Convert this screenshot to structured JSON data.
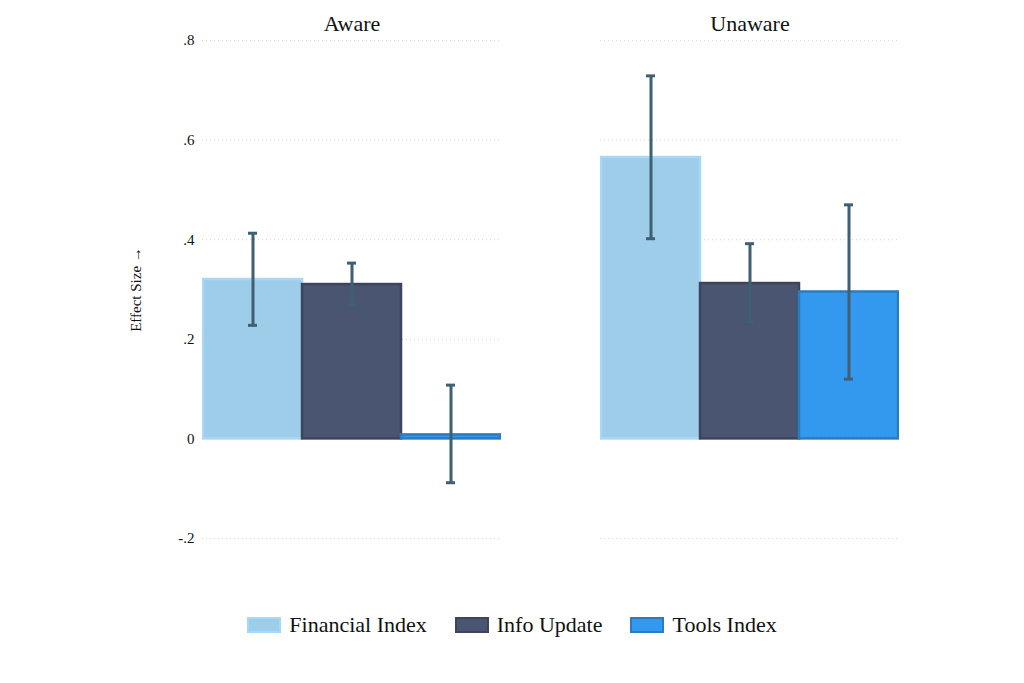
{
  "chart_data": {
    "type": "bar",
    "categories": [
      "Aware",
      "Unaware"
    ],
    "series": [
      {
        "name": "Financial Index",
        "color": "#9ecdea",
        "values": [
          0.32,
          0.565
        ],
        "ci_low": [
          0.228,
          0.402
        ],
        "ci_high": [
          0.413,
          0.729
        ]
      },
      {
        "name": "Info Update",
        "color": "#4a5572",
        "values": [
          0.31,
          0.312
        ],
        "ci_low": [
          0.27,
          0.235
        ],
        "ci_high": [
          0.353,
          0.392
        ]
      },
      {
        "name": "Tools Index",
        "color": "#3399ee",
        "values": [
          0.008,
          0.295
        ],
        "ci_low": [
          -0.088,
          0.12
        ],
        "ci_high": [
          0.108,
          0.47
        ]
      }
    ],
    "y_label": "Effect Size",
    "ylim": [
      -0.2,
      0.8
    ],
    "yticks": [
      {
        "value": -0.2,
        "label": "-.2"
      },
      {
        "value": 0,
        "label": "0"
      },
      {
        "value": 0.2,
        "label": ".2"
      },
      {
        "value": 0.4,
        "label": ".4"
      },
      {
        "value": 0.6,
        "label": ".6"
      },
      {
        "value": 0.8,
        "label": ".8"
      }
    ],
    "grid": true,
    "legend": "bottom"
  }
}
